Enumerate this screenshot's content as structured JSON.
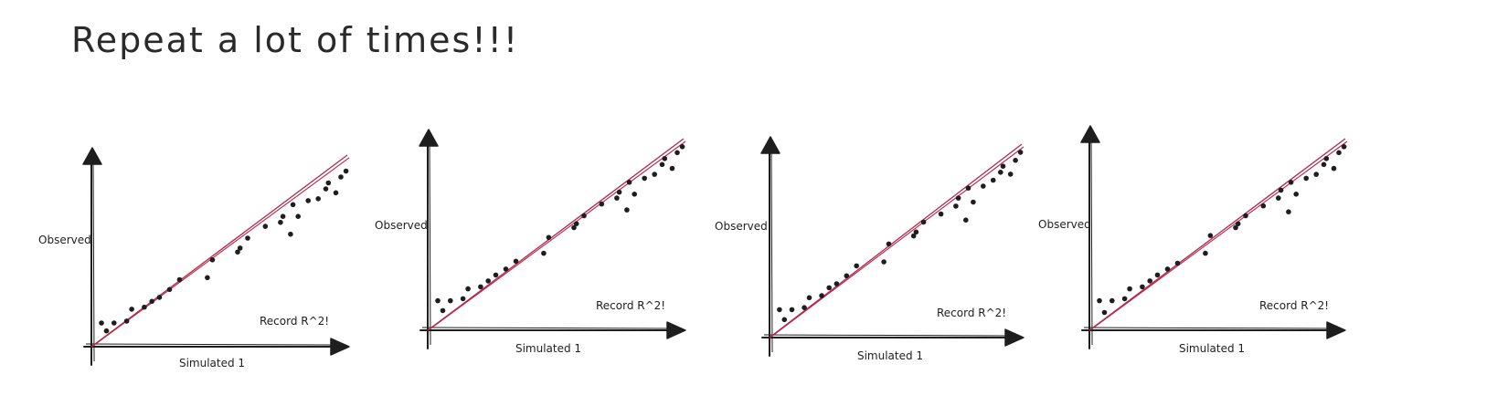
{
  "heading": "Repeat a lot of times!!!",
  "colors": {
    "ink": "#1e1e1e",
    "fit_line": "#b5284b",
    "background": "#ffffff"
  },
  "panels": [
    {
      "xlabel": "Simulated 1",
      "ylabel": "Observed",
      "annotation": "Record R^2!",
      "points": [
        [
          0.04,
          0.12
        ],
        [
          0.06,
          0.08
        ],
        [
          0.09,
          0.12
        ],
        [
          0.14,
          0.13
        ],
        [
          0.16,
          0.19
        ],
        [
          0.21,
          0.2
        ],
        [
          0.24,
          0.23
        ],
        [
          0.27,
          0.25
        ],
        [
          0.31,
          0.29
        ],
        [
          0.35,
          0.34
        ],
        [
          0.46,
          0.35
        ],
        [
          0.48,
          0.44
        ],
        [
          0.58,
          0.48
        ],
        [
          0.59,
          0.5
        ],
        [
          0.62,
          0.55
        ],
        [
          0.69,
          0.61
        ],
        [
          0.75,
          0.63
        ],
        [
          0.76,
          0.66
        ],
        [
          0.79,
          0.57
        ],
        [
          0.8,
          0.72
        ],
        [
          0.82,
          0.66
        ],
        [
          0.86,
          0.74
        ],
        [
          0.9,
          0.75
        ],
        [
          0.93,
          0.8
        ],
        [
          0.94,
          0.83
        ],
        [
          0.97,
          0.78
        ],
        [
          0.99,
          0.86
        ],
        [
          1.01,
          0.89
        ]
      ]
    },
    {
      "xlabel": "Simulated 1",
      "ylabel": "Observed",
      "annotation": "Record R^2!",
      "points": [
        [
          0.04,
          0.15
        ],
        [
          0.06,
          0.1
        ],
        [
          0.09,
          0.15
        ],
        [
          0.14,
          0.16
        ],
        [
          0.16,
          0.21
        ],
        [
          0.21,
          0.22
        ],
        [
          0.24,
          0.25
        ],
        [
          0.27,
          0.28
        ],
        [
          0.31,
          0.31
        ],
        [
          0.35,
          0.35
        ],
        [
          0.46,
          0.39
        ],
        [
          0.48,
          0.47
        ],
        [
          0.58,
          0.52
        ],
        [
          0.59,
          0.54
        ],
        [
          0.62,
          0.58
        ],
        [
          0.69,
          0.64
        ],
        [
          0.75,
          0.67
        ],
        [
          0.76,
          0.7
        ],
        [
          0.79,
          0.61
        ],
        [
          0.8,
          0.75
        ],
        [
          0.82,
          0.69
        ],
        [
          0.86,
          0.77
        ],
        [
          0.9,
          0.79
        ],
        [
          0.93,
          0.84
        ],
        [
          0.94,
          0.87
        ],
        [
          0.97,
          0.82
        ],
        [
          0.99,
          0.9
        ],
        [
          1.01,
          0.93
        ]
      ]
    },
    {
      "xlabel": "Simulated 1",
      "ylabel": "Observed",
      "annotation": "Record R^2!",
      "points": [
        [
          0.04,
          0.14
        ],
        [
          0.06,
          0.09
        ],
        [
          0.09,
          0.14
        ],
        [
          0.14,
          0.15
        ],
        [
          0.16,
          0.2
        ],
        [
          0.21,
          0.21
        ],
        [
          0.24,
          0.25
        ],
        [
          0.27,
          0.27
        ],
        [
          0.31,
          0.31
        ],
        [
          0.35,
          0.36
        ],
        [
          0.46,
          0.38
        ],
        [
          0.48,
          0.47
        ],
        [
          0.58,
          0.51
        ],
        [
          0.59,
          0.53
        ],
        [
          0.62,
          0.58
        ],
        [
          0.69,
          0.62
        ],
        [
          0.75,
          0.66
        ],
        [
          0.76,
          0.7
        ],
        [
          0.79,
          0.59
        ],
        [
          0.8,
          0.75
        ],
        [
          0.82,
          0.68
        ],
        [
          0.86,
          0.76
        ],
        [
          0.9,
          0.79
        ],
        [
          0.93,
          0.83
        ],
        [
          0.94,
          0.86
        ],
        [
          0.97,
          0.82
        ],
        [
          0.99,
          0.89
        ],
        [
          1.01,
          0.93
        ]
      ]
    },
    {
      "xlabel": "Simulated 1",
      "ylabel": "Observed",
      "annotation": "Record R^2!",
      "points": [
        [
          0.04,
          0.15
        ],
        [
          0.06,
          0.09
        ],
        [
          0.09,
          0.15
        ],
        [
          0.14,
          0.16
        ],
        [
          0.16,
          0.21
        ],
        [
          0.21,
          0.22
        ],
        [
          0.24,
          0.25
        ],
        [
          0.27,
          0.28
        ],
        [
          0.31,
          0.31
        ],
        [
          0.35,
          0.34
        ],
        [
          0.46,
          0.39
        ],
        [
          0.48,
          0.48
        ],
        [
          0.58,
          0.52
        ],
        [
          0.59,
          0.54
        ],
        [
          0.62,
          0.58
        ],
        [
          0.69,
          0.63
        ],
        [
          0.75,
          0.67
        ],
        [
          0.76,
          0.71
        ],
        [
          0.79,
          0.6
        ],
        [
          0.8,
          0.75
        ],
        [
          0.82,
          0.69
        ],
        [
          0.86,
          0.77
        ],
        [
          0.9,
          0.79
        ],
        [
          0.93,
          0.84
        ],
        [
          0.94,
          0.87
        ],
        [
          0.97,
          0.82
        ],
        [
          0.99,
          0.9
        ],
        [
          1.01,
          0.93
        ]
      ]
    }
  ]
}
